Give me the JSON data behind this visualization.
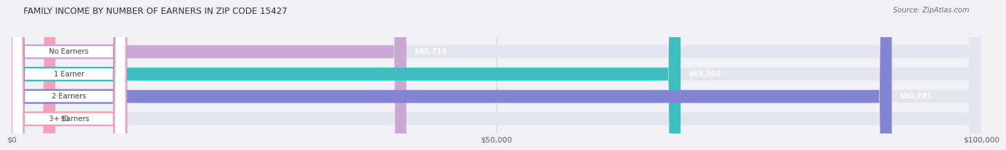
{
  "title": "FAMILY INCOME BY NUMBER OF EARNERS IN ZIP CODE 15427",
  "source": "Source: ZipAtlas.com",
  "categories": [
    "No Earners",
    "1 Earner",
    "2 Earners",
    "3+ Earners"
  ],
  "values": [
    40714,
    69000,
    90781,
    0
  ],
  "bar_colors": [
    "#c9a8d4",
    "#3dbfbf",
    "#8484d4",
    "#f4a0b8"
  ],
  "value_labels": [
    "$40,714",
    "$69,000",
    "$90,781",
    "$0"
  ],
  "xlim": [
    0,
    100000
  ],
  "xticks": [
    0,
    50000,
    100000
  ],
  "xtick_labels": [
    "$0",
    "$50,000",
    "$100,000"
  ],
  "background_color": "#f0f0f5",
  "bar_bg_color": "#e4e4ee",
  "bar_height": 0.58,
  "figsize": [
    14.06,
    2.33
  ]
}
